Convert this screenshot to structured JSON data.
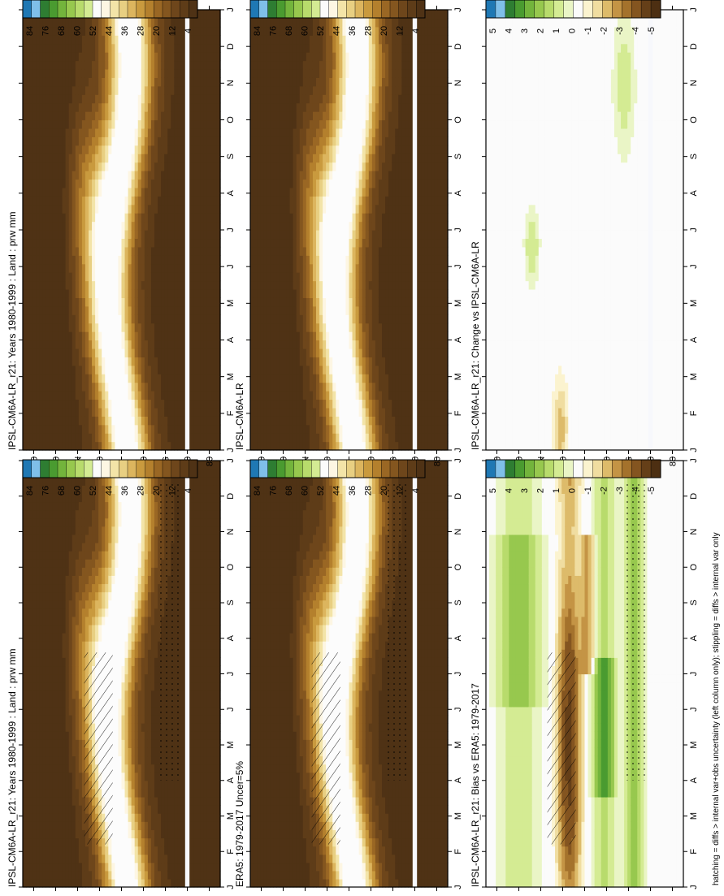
{
  "footnote": "hatching = diffs > internal var+obs uncertainty (left column only); stippling = diffs > internal var only",
  "colors": {
    "absolute_scale": [
      "#fcfcfc",
      "#fdf6e3",
      "#f3e4a8",
      "#e8cf82",
      "#dcb55e",
      "#c99a3e",
      "#b4802d",
      "#9a6724",
      "#84561f",
      "#6e461b",
      "#5e3c18",
      "#4f3215"
    ],
    "difference_scale": [
      "#1f78b4",
      "#7fbfe9",
      "#2e7d32",
      "#4a9b30",
      "#73b43c",
      "#97c84e",
      "#b8db6c",
      "#d4eb93",
      "#eaf5c6",
      "#fbfbfb",
      "#fbf3cf",
      "#f0dda0",
      "#ddbb6a",
      "#c49445",
      "#a4722c",
      "#845520",
      "#653f18",
      "#4d2f12"
    ],
    "ocean_mask": "#f7f8fc",
    "absolute_bar": [
      "#1f78b4",
      "#7fbfe9",
      "#2e7d32",
      "#4a9b30",
      "#73b43c",
      "#97c84e",
      "#b8db6c",
      "#d4eb93",
      "#fbfbfb",
      "#fdf6e3",
      "#f3e4a8",
      "#e8cf82",
      "#dcb55e",
      "#c99a3e",
      "#b4802d",
      "#9a6724",
      "#84561f",
      "#6e461b",
      "#5e3c18",
      "#4f3215"
    ]
  },
  "chart_data": [
    {
      "type": "heatmap",
      "panel": "row1-left",
      "title": "IPSL-CM6A-LR_r21: Years 1980-1999 : Land : prw mm",
      "x_axis": [
        "J",
        "F",
        "M",
        "A",
        "M",
        "J",
        "J",
        "A",
        "S",
        "O",
        "N",
        "D",
        "J"
      ],
      "y_axis": [
        "80",
        "60",
        "°N",
        "20",
        "0",
        "20",
        "°S",
        "60",
        "80"
      ],
      "colorbar": [
        "84",
        "76",
        "68",
        "60",
        "52",
        "44",
        "36",
        "28",
        "20",
        "12",
        "4"
      ],
      "kind": "absolute",
      "masked_band_lat": [
        -58,
        -62
      ]
    },
    {
      "type": "heatmap",
      "panel": "row1-right",
      "title": "IPSL-CM6A-LR_r21: Years 1980-1999 : Land : prw mm",
      "x_axis": [
        "J",
        "F",
        "M",
        "A",
        "M",
        "J",
        "J",
        "A",
        "S",
        "O",
        "N",
        "D",
        "J"
      ],
      "y_axis": [
        "80",
        "60",
        "°N",
        "20",
        "0",
        "20",
        "°S",
        "60",
        "80"
      ],
      "colorbar": [
        "84",
        "76",
        "68",
        "60",
        "52",
        "44",
        "36",
        "28",
        "20",
        "12",
        "4"
      ],
      "kind": "absolute",
      "masked_band_lat": [
        -58,
        -62
      ]
    },
    {
      "type": "heatmap",
      "panel": "row2-left",
      "title": "ERA5: 1979-2017 Uncer=5%",
      "x_axis": [
        "J",
        "F",
        "M",
        "A",
        "M",
        "J",
        "J",
        "A",
        "S",
        "O",
        "N",
        "D",
        "J"
      ],
      "y_axis": [
        "80",
        "60",
        "°N",
        "20",
        "0",
        "20",
        "°S",
        "60",
        "80"
      ],
      "colorbar": [
        "84",
        "76",
        "68",
        "60",
        "52",
        "44",
        "36",
        "28",
        "20",
        "12",
        "4"
      ],
      "kind": "absolute",
      "masked_band_lat": [
        -58,
        -62
      ]
    },
    {
      "type": "heatmap",
      "panel": "row2-right",
      "title": "IPSL-CM6A-LR",
      "x_axis": [
        "J",
        "F",
        "M",
        "A",
        "M",
        "J",
        "J",
        "A",
        "S",
        "O",
        "N",
        "D",
        "J"
      ],
      "y_axis": [
        "80",
        "60",
        "°N",
        "20",
        "0",
        "20",
        "°S",
        "60",
        "80"
      ],
      "colorbar": [
        "84",
        "76",
        "68",
        "60",
        "52",
        "44",
        "36",
        "28",
        "20",
        "12",
        "4"
      ],
      "kind": "absolute",
      "masked_band_lat": [
        -58,
        -62
      ]
    },
    {
      "type": "heatmap",
      "panel": "row3-left",
      "title": "IPSL-CM6A-LR_r21: Bias vs ERA5: 1979-2017",
      "x_axis": [
        "J",
        "F",
        "M",
        "A",
        "M",
        "J",
        "J",
        "A",
        "S",
        "O",
        "N",
        "D",
        "J"
      ],
      "y_axis": [
        "80",
        "60",
        "°N",
        "20",
        "0",
        "20",
        "°S",
        "60",
        "80"
      ],
      "colorbar": [
        "5",
        "4",
        "3",
        "2",
        "1",
        "0",
        "-1",
        "-2",
        "-3",
        "-4",
        "-5"
      ],
      "kind": "bias"
    },
    {
      "type": "heatmap",
      "panel": "row3-right",
      "title": "IPSL-CM6A-LR_r21: Change vs IPSL-CM6A-LR",
      "x_axis": [
        "J",
        "F",
        "M",
        "A",
        "M",
        "J",
        "J",
        "A",
        "S",
        "O",
        "N",
        "D",
        "J"
      ],
      "y_axis": [
        "80",
        "60",
        "°N",
        "20",
        "0",
        "20",
        "°S",
        "60",
        "80"
      ],
      "colorbar": [
        "5",
        "4",
        "3",
        "2",
        "1",
        "0",
        "-1",
        "-2",
        "-3",
        "-4",
        "-5"
      ],
      "kind": "change"
    }
  ]
}
